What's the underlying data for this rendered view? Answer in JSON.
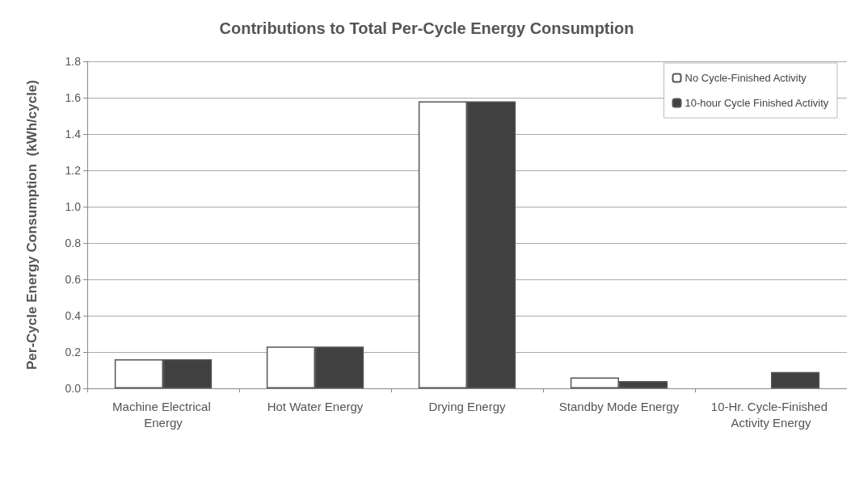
{
  "chart_data": {
    "type": "bar",
    "title": "Contributions to Total Per-Cycle Energy Consumption",
    "ylabel": "Per-Cycle Energy Consumption  (kWh/cycle)",
    "categories": [
      "Machine Electrical Energy",
      "Hot Water Energy",
      "Drying Energy",
      "Standby Mode Energy",
      "10-Hr. Cycle-Finished Activity Energy"
    ],
    "series": [
      {
        "name": "No Cycle-Finished Activity",
        "color": "#ffffff",
        "values": [
          0.16,
          0.23,
          1.58,
          0.06,
          null
        ]
      },
      {
        "name": "10-hour Cycle Finished Activity",
        "color": "#404040",
        "values": [
          0.16,
          0.23,
          1.58,
          0.04,
          0.09
        ]
      }
    ],
    "ylim": [
      0,
      1.8
    ],
    "yticks": [
      {
        "value": 0,
        "label": "0.0"
      },
      0.2,
      0.4,
      0.6,
      0.8,
      {
        "value": 1,
        "label": "1.0"
      },
      1.2,
      1.4,
      1.6,
      1.8
    ],
    "grid": "y",
    "legend": "top right"
  }
}
